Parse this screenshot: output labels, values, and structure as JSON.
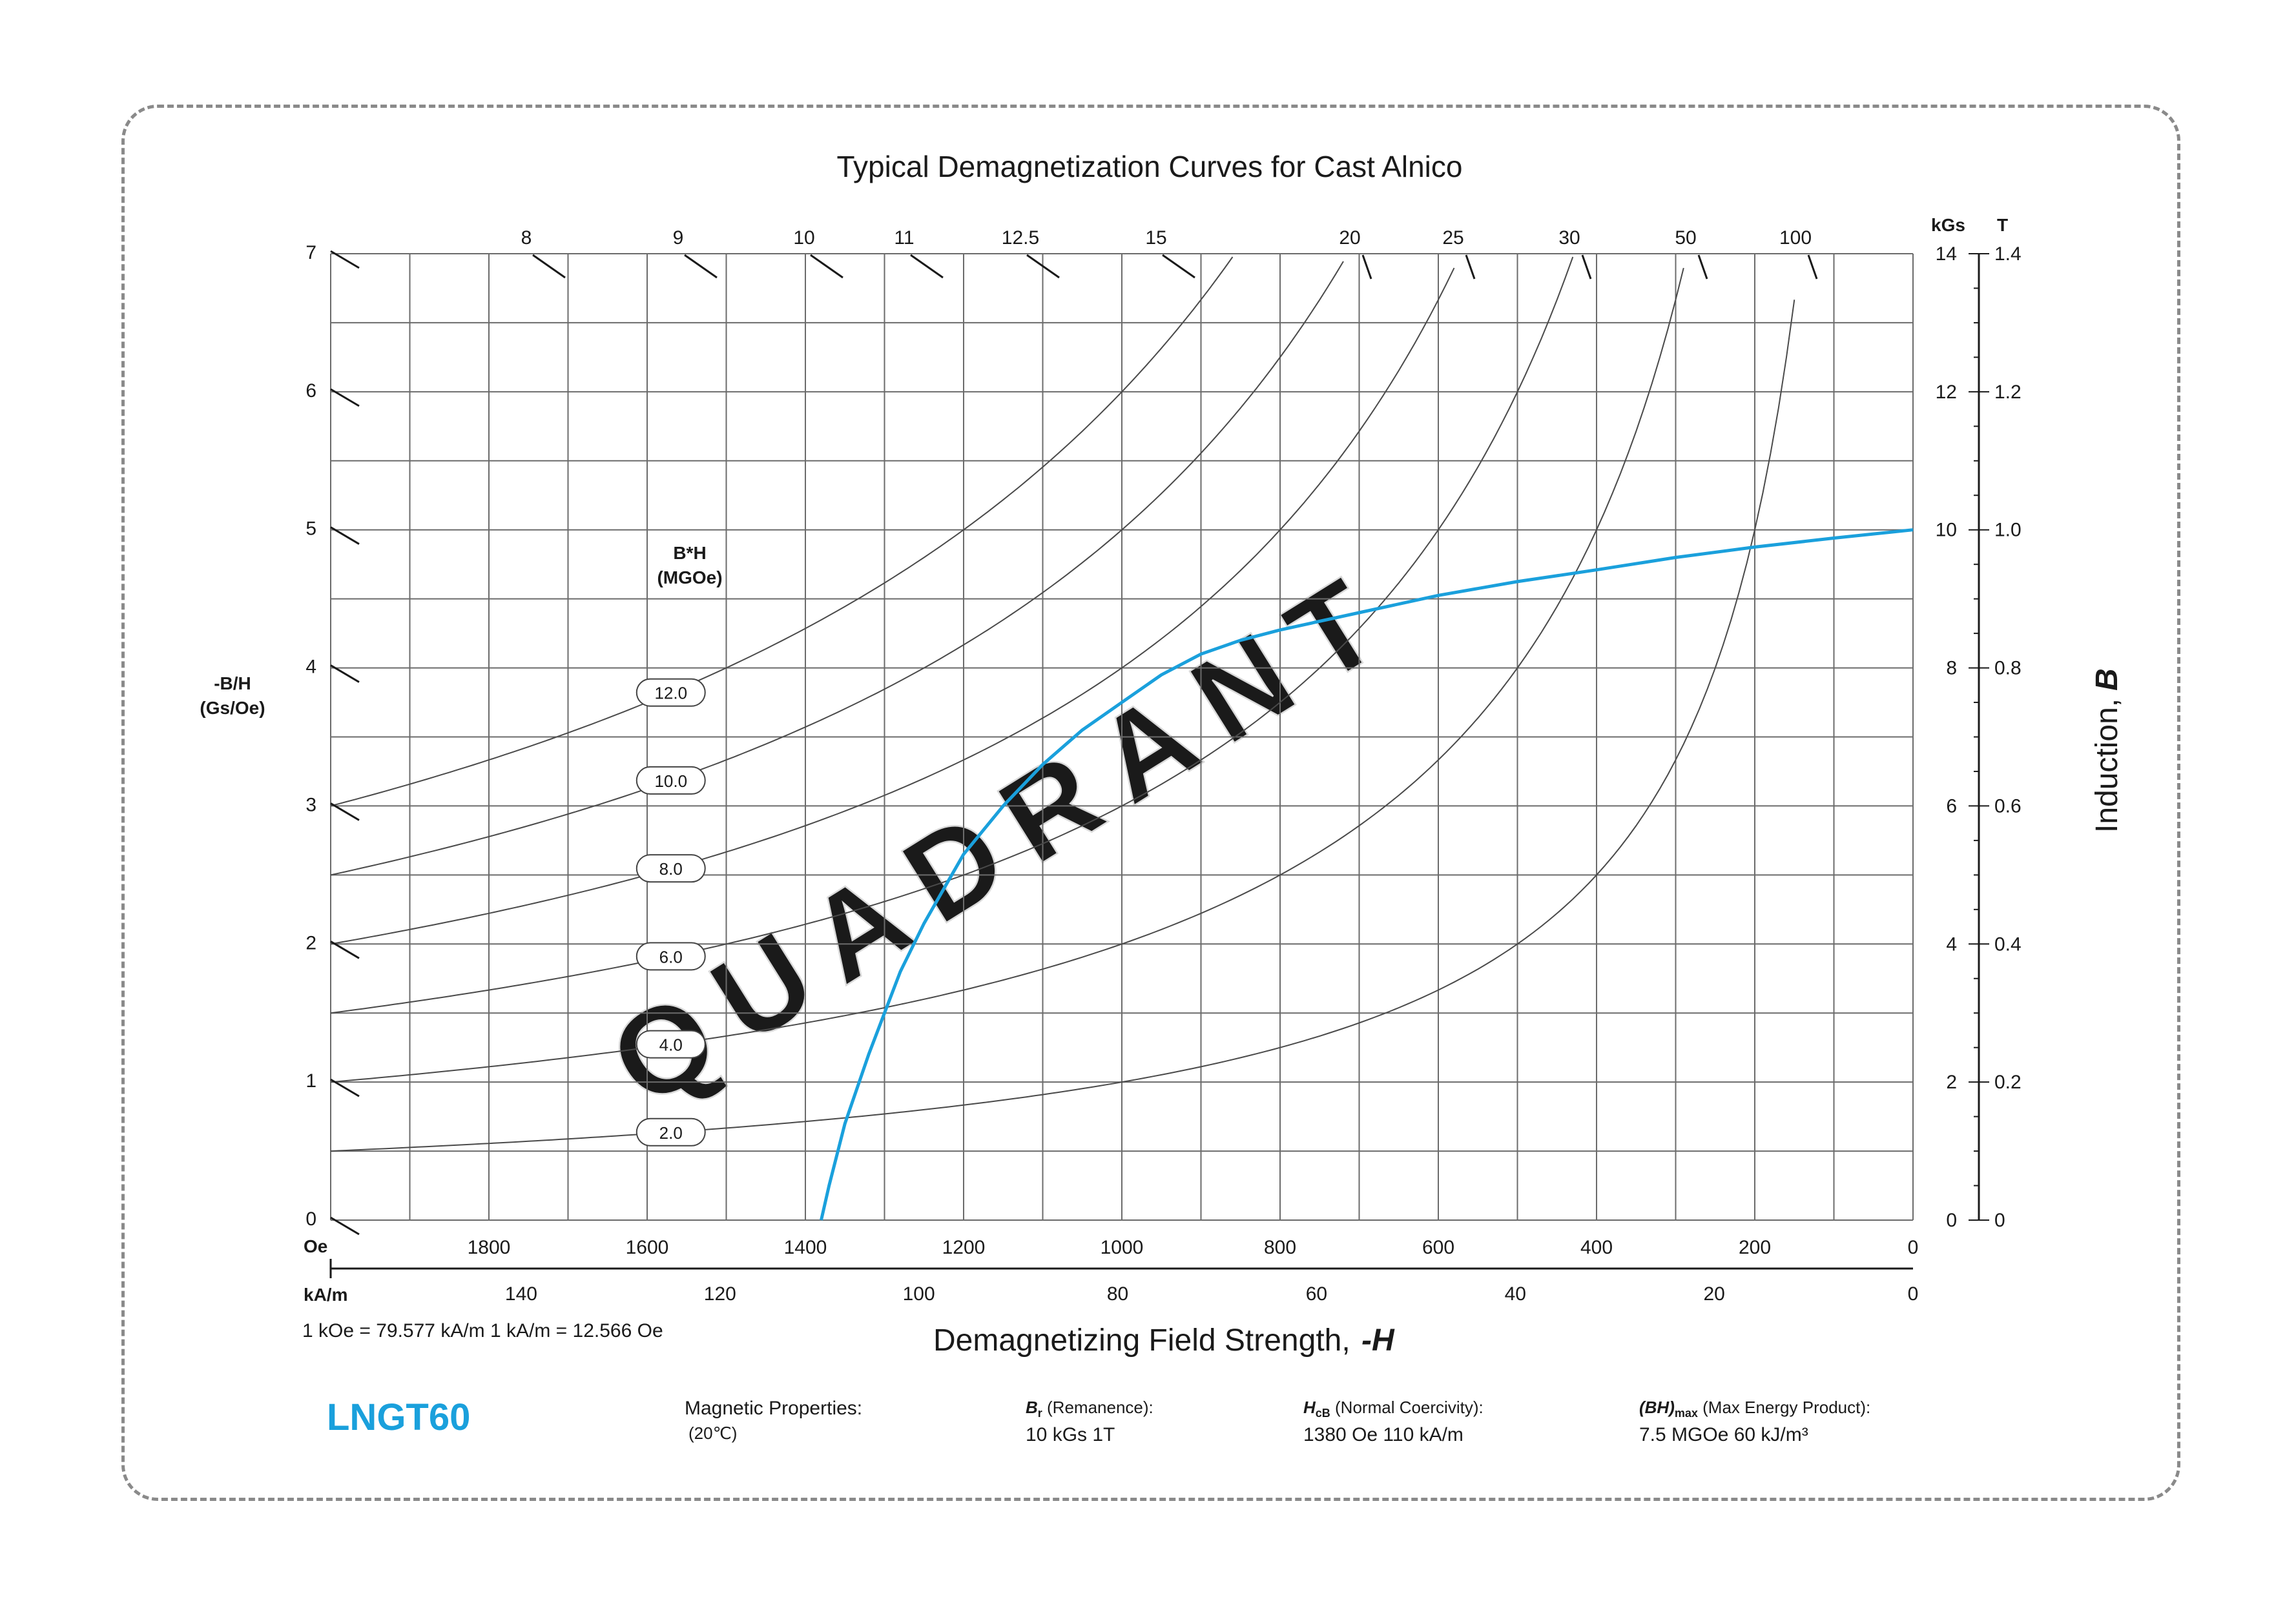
{
  "title": "Typical Demagnetization Curves for Cast Alnico",
  "watermark": "QUADRANT",
  "product": "LNGT60",
  "conversion_note": "1 kOe = 79.577 kA/m   1 kA/m = 12.566 Oe",
  "colors": {
    "main_curve": "#1aa0dc",
    "product": "#1aa0dc",
    "frame": "#8a8a8a"
  },
  "properties": {
    "heading": "Magnetic Properties:",
    "temperature": "(20℃)",
    "br_symbol": "B",
    "br_sub": "r",
    "br_label": " (Remanence):",
    "br_value": "10 kGs    1T",
    "hcb_symbol": "H",
    "hcb_sub": "cB",
    "hcb_label": " (Normal Coercivity):",
    "hcb_value": "1380 Oe   110 kA/m",
    "bhmax_symbol": "(BH)",
    "bhmax_sub": "max",
    "bhmax_label": " (Max Energy Product):",
    "bhmax_value": "7.5 MGOe    60 kJ/m³"
  },
  "chart_data": {
    "type": "line",
    "title": "Typical Demagnetization Curves for Cast Alnico",
    "xlabel": "Demagnetizing Field Strength, -H",
    "ylabel_right": "Induction, B",
    "ylabel_left": "-B/H\n(Gs/Oe)",
    "x_unit_oe": "Oe",
    "x_unit_ka": "kA/m",
    "y_unit_kgs": "kGs",
    "y_unit_t": "T",
    "xlim_oe": [
      2000,
      0
    ],
    "ylim_kgs": [
      0,
      14
    ],
    "grid": true,
    "x_ticks_oe": [
      "1800",
      "1600",
      "1400",
      "1200",
      "1000",
      "800",
      "600",
      "400",
      "200",
      "0"
    ],
    "x_ticks_ka": [
      "140",
      "120",
      "100",
      "80",
      "60",
      "40",
      "20",
      "0"
    ],
    "y_ticks_kgs": [
      "0",
      "2",
      "4",
      "6",
      "8",
      "10",
      "12",
      "14"
    ],
    "y_ticks_t": [
      "0",
      "0.2",
      "0.4",
      "0.6",
      "0.8",
      "1.0",
      "1.2",
      "1.4"
    ],
    "y_ticks_left": [
      "0",
      "1",
      "2",
      "3",
      "4",
      "5",
      "6",
      "7"
    ],
    "top_scale_labels": [
      "8",
      "9",
      "10",
      "11",
      "12.5",
      "15",
      "20",
      "25",
      "30",
      "50",
      "100"
    ],
    "energy_product_label": "B*H\n(MGOe)",
    "energy_product_curves": [
      "2.0",
      "4.0",
      "6.0",
      "8.0",
      "10.0",
      "12.0"
    ],
    "series": [
      {
        "name": "LNGT60",
        "x": [
          1380,
          1370,
          1350,
          1320,
          1300,
          1280,
          1250,
          1220,
          1200,
          1150,
          1100,
          1050,
          1000,
          950,
          900,
          850,
          800,
          700,
          600,
          500,
          400,
          300,
          200,
          100,
          0
        ],
        "y": [
          0,
          0.5,
          1.4,
          2.4,
          3.0,
          3.6,
          4.3,
          4.9,
          5.3,
          6.0,
          6.6,
          7.1,
          7.5,
          7.9,
          8.2,
          8.4,
          8.55,
          8.8,
          9.05,
          9.25,
          9.42,
          9.6,
          9.75,
          9.88,
          10.0
        ]
      }
    ]
  }
}
